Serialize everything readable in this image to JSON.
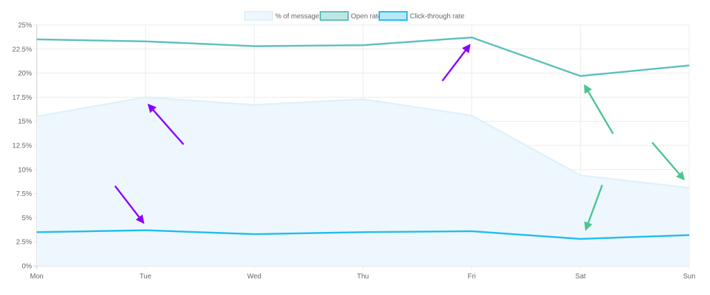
{
  "chart_data": {
    "type": "line",
    "categories": [
      "Mon",
      "Tue",
      "Wed",
      "Thu",
      "Fri",
      "Sat",
      "Sun"
    ],
    "ylim": [
      0,
      25
    ],
    "y_ticks": [
      "0%",
      "2.5%",
      "5%",
      "7.5%",
      "10%",
      "12.5%",
      "15%",
      "17.5%",
      "20%",
      "22.5%",
      "25%"
    ],
    "grid": true,
    "legend_position": "top-center",
    "series": [
      {
        "name": "% of messages",
        "style": "area",
        "color": "#dff1fb",
        "fill": "#eef7fd",
        "values": [
          15.5,
          17.5,
          16.7,
          17.3,
          15.6,
          9.4,
          8.1
        ]
      },
      {
        "name": "Open rate",
        "style": "line",
        "color": "#5ac0bd",
        "fill": "#bfe6e4",
        "values": [
          23.5,
          23.3,
          22.8,
          22.9,
          23.7,
          19.7,
          20.8
        ]
      },
      {
        "name": "Click-through rate",
        "style": "line",
        "color": "#1ebdf0",
        "fill": "#b7e7f8",
        "values": [
          3.5,
          3.7,
          3.3,
          3.5,
          3.6,
          2.8,
          3.2
        ]
      }
    ],
    "annotations": [
      {
        "type": "arrow",
        "color": "#8b00ff",
        "from": [
          "Tue",
          12.6
        ],
        "to": [
          "Tue",
          16.7
        ],
        "from_offset": 0.35,
        "to_offset": 0.03
      },
      {
        "type": "arrow",
        "color": "#8b00ff",
        "from": [
          "Mon",
          8.3
        ],
        "to": [
          "Tue",
          4.5
        ],
        "from_offset": 0.72,
        "to_offset": -0.02
      },
      {
        "type": "arrow",
        "color": "#8b00ff",
        "from": [
          "Thu",
          19.2
        ],
        "to": [
          "Fri",
          22.9
        ],
        "from_offset": 0.73,
        "to_offset": -0.02
      },
      {
        "type": "arrow",
        "color": "#4cc591",
        "from": [
          "Sat",
          13.7
        ],
        "to": [
          "Sat",
          18.7
        ],
        "from_offset": 0.3,
        "to_offset": 0.04
      },
      {
        "type": "arrow",
        "color": "#4cc591",
        "from": [
          "Sat",
          12.8
        ],
        "to": [
          "Sun",
          9.0
        ],
        "from_offset": 0.66,
        "to_offset": -0.05
      },
      {
        "type": "arrow",
        "color": "#4cc591",
        "from": [
          "Sat",
          8.4
        ],
        "to": [
          "Sat",
          3.8
        ],
        "from_offset": 0.2,
        "to_offset": 0.05
      }
    ]
  }
}
